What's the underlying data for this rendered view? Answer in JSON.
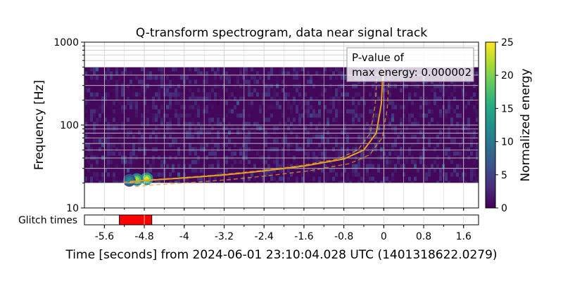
{
  "chart_data": {
    "type": "heatmap",
    "title": "Q-transform spectrogram, data near signal track",
    "xlabel": "Time [seconds] from 2024-06-01 23:10:04.028 UTC (1401318622.0279)",
    "ylabel": "Frequency [Hz]",
    "xlim": [
      -6.0,
      1.9
    ],
    "ylim": [
      10,
      1000
    ],
    "yscale": "log",
    "x_ticks": [
      "-5.6",
      "-4.8",
      "-4",
      "-3.2",
      "-2.4",
      "-1.6",
      "-0.8",
      "0",
      "0.8",
      "1.6"
    ],
    "x_tick_values": [
      -5.6,
      -4.8,
      -4.0,
      -3.2,
      -2.4,
      -1.6,
      -0.8,
      0.0,
      0.8,
      1.6
    ],
    "y_ticks": [
      "10",
      "100",
      "1000"
    ],
    "y_tick_values": [
      10,
      100,
      1000
    ],
    "grid": true,
    "data_frequency_range": [
      20,
      500
    ],
    "colorbar": {
      "label": "Normalized energy",
      "range": [
        0,
        25
      ],
      "ticks": [
        "0",
        "5",
        "10",
        "15",
        "20",
        "25"
      ],
      "tick_values": [
        0,
        5,
        10,
        15,
        20,
        25
      ],
      "colormap": "viridis"
    },
    "annotation": {
      "line1": "P-value of",
      "line2": "max energy: 0.000002"
    },
    "signal_track": {
      "color": "#e8a020",
      "points": [
        {
          "t": -5.1,
          "f": 20.5
        },
        {
          "t": -4.8,
          "f": 21.4
        },
        {
          "t": -4.0,
          "f": 23.0
        },
        {
          "t": -3.2,
          "f": 25.0
        },
        {
          "t": -2.4,
          "f": 28.0
        },
        {
          "t": -1.6,
          "f": 32.0
        },
        {
          "t": -0.8,
          "f": 39.0
        },
        {
          "t": -0.4,
          "f": 50.0
        },
        {
          "t": -0.15,
          "f": 80.0
        },
        {
          "t": -0.05,
          "f": 180.0
        },
        {
          "t": -0.01,
          "f": 500.0
        }
      ]
    },
    "glitch": {
      "label": "Glitch times",
      "color": "#ff0000",
      "intervals": [
        [
          -5.3,
          -4.65
        ]
      ]
    },
    "hot_spots": [
      {
        "t": -4.75,
        "f": 22.5,
        "energy": 24
      },
      {
        "t": -4.95,
        "f": 22.0,
        "energy": 22
      },
      {
        "t": -5.1,
        "f": 21.5,
        "energy": 12
      }
    ]
  }
}
